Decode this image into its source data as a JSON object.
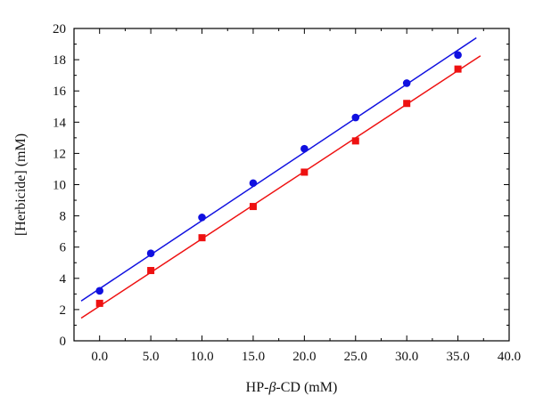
{
  "chart_data": {
    "type": "scatter",
    "xlabel": {
      "pre": "HP-",
      "greek": "β",
      "post": "-CD (mM)"
    },
    "ylabel": "[Herbicide] (mM)",
    "xlim": [
      -2.5,
      40
    ],
    "ylim": [
      0,
      20
    ],
    "x_ticks": [
      0,
      5,
      10,
      15,
      20,
      25,
      30,
      35,
      40
    ],
    "x_tick_labels": [
      "0.0",
      "5.0",
      "10.0",
      "15.0",
      "20.0",
      "25.0",
      "30.0",
      "35.0",
      "40.0"
    ],
    "y_ticks": [
      0,
      2,
      4,
      6,
      8,
      10,
      12,
      14,
      16,
      18,
      20
    ],
    "y_tick_labels": [
      "0",
      "2",
      "4",
      "6",
      "8",
      "10",
      "12",
      "14",
      "16",
      "18",
      "20"
    ],
    "grid": false,
    "legend": "none",
    "series": [
      {
        "marker": "circle",
        "color": "#1010e0",
        "points": [
          [
            0,
            3.2
          ],
          [
            5,
            5.6
          ],
          [
            10,
            7.9
          ],
          [
            15,
            10.1
          ],
          [
            20,
            12.3
          ],
          [
            25,
            14.3
          ],
          [
            30,
            16.5
          ],
          [
            35,
            18.3
          ]
        ],
        "fit_line": {
          "x": [
            -1.8,
            36.8
          ],
          "y": [
            2.55,
            19.4
          ]
        }
      },
      {
        "marker": "square",
        "color": "#ee1111",
        "points": [
          [
            0,
            2.4
          ],
          [
            5,
            4.5
          ],
          [
            10,
            6.6
          ],
          [
            15,
            8.6
          ],
          [
            20,
            10.8
          ],
          [
            25,
            12.8
          ],
          [
            30,
            15.2
          ],
          [
            35,
            17.4
          ]
        ],
        "fit_line": {
          "x": [
            -1.8,
            37.2
          ],
          "y": [
            1.45,
            18.25
          ]
        }
      }
    ]
  }
}
